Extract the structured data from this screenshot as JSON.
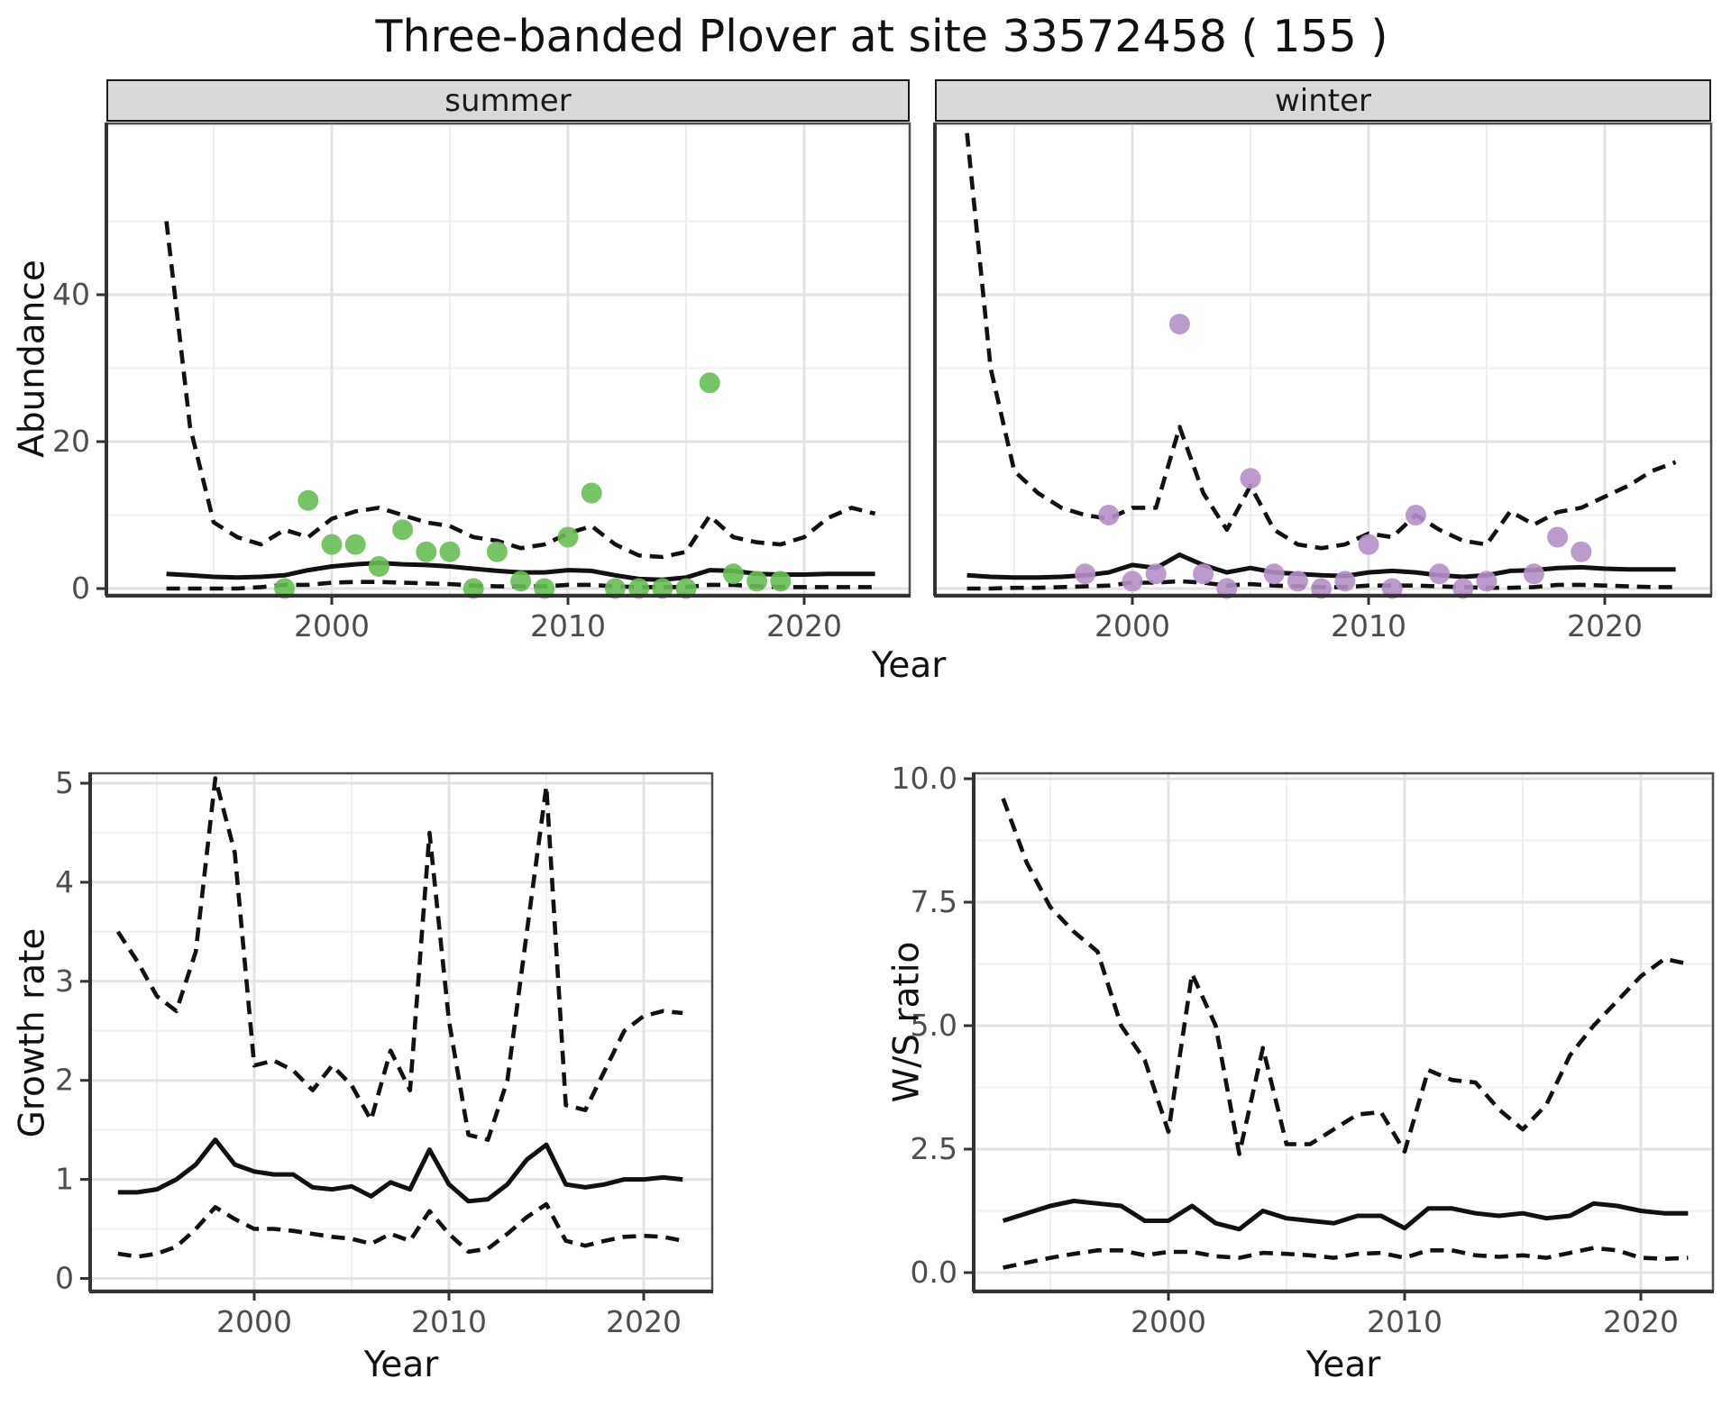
{
  "title": "Three-banded Plover at site 33572458 ( 155 )",
  "colors": {
    "summer_points": "#68BE57",
    "winter_points": "#B48FC6",
    "line": "#111111",
    "strip_bg": "#D9D9D9",
    "grid_major": "#E3E3E3",
    "grid_minor": "#F0F0F0",
    "tick_text": "#4D4D4D",
    "panel_border": "#4D4D4D"
  },
  "chart_data": [
    {
      "type": "scatter",
      "facet": "summer",
      "ylabel": "Abundance",
      "xlabel": "Year",
      "legend_position": "none",
      "grid": true,
      "xlim": [
        1991.5,
        2024.5
      ],
      "ylim": [
        -2.5,
        63
      ],
      "x_ticks": {
        "labels": [
          "2000",
          "2010",
          "2020"
        ],
        "values": [
          2000,
          2010,
          2020
        ]
      },
      "y_ticks": {
        "labels": [
          "0",
          "20",
          "40"
        ],
        "values": [
          0,
          20,
          40
        ]
      },
      "point_color": "#68BE57",
      "points": {
        "x": [
          1998,
          1999,
          2000,
          2001,
          2002,
          2003,
          2004,
          2005,
          2006,
          2007,
          2008,
          2009,
          2010,
          2011,
          2012,
          2013,
          2014,
          2015,
          2016,
          2017,
          2018,
          2019
        ],
        "y": [
          0,
          12,
          6,
          6,
          3,
          8,
          5,
          5,
          0,
          5,
          1,
          0,
          7,
          13,
          0,
          0,
          0,
          0,
          28,
          2,
          1,
          1
        ]
      },
      "series": [
        {
          "name": "median",
          "style": "solid",
          "x": [
            1993,
            1994,
            1995,
            1996,
            1997,
            1998,
            1999,
            2000,
            2001,
            2002,
            2003,
            2004,
            2005,
            2006,
            2007,
            2008,
            2009,
            2010,
            2011,
            2012,
            2013,
            2014,
            2015,
            2016,
            2017,
            2018,
            2019,
            2020,
            2021,
            2022,
            2023
          ],
          "y": [
            2.0,
            1.8,
            1.6,
            1.5,
            1.6,
            1.8,
            2.5,
            3.0,
            3.3,
            3.5,
            3.3,
            3.2,
            3.0,
            2.7,
            2.4,
            2.2,
            2.2,
            2.5,
            2.4,
            1.8,
            1.3,
            1.2,
            1.5,
            2.5,
            2.4,
            2.0,
            1.9,
            1.9,
            2.0,
            2.0,
            2.0
          ]
        },
        {
          "name": "upper_quantile",
          "style": "dashed",
          "x": [
            1993,
            1994,
            1995,
            1996,
            1997,
            1998,
            1999,
            2000,
            2001,
            2002,
            2003,
            2004,
            2005,
            2006,
            2007,
            2008,
            2009,
            2010,
            2011,
            2012,
            2013,
            2014,
            2015,
            2016,
            2017,
            2018,
            2019,
            2020,
            2021,
            2022,
            2023
          ],
          "y": [
            50,
            22,
            9,
            7,
            6,
            8,
            7,
            9.5,
            10.5,
            11,
            10,
            9,
            8.5,
            7,
            6.5,
            5.5,
            6,
            7.5,
            8.5,
            6,
            4.5,
            4.3,
            5,
            9.9,
            7,
            6.3,
            6,
            7,
            9.6,
            11,
            10.2
          ]
        },
        {
          "name": "lower_quantile",
          "style": "dashed",
          "x": [
            1993,
            1994,
            1995,
            1996,
            1997,
            1998,
            1999,
            2000,
            2001,
            2002,
            2003,
            2004,
            2005,
            2006,
            2007,
            2008,
            2009,
            2010,
            2011,
            2012,
            2013,
            2014,
            2015,
            2016,
            2017,
            2018,
            2019,
            2020,
            2021,
            2022,
            2023
          ],
          "y": [
            0,
            0,
            0,
            0,
            0.2,
            0.5,
            0.5,
            0.8,
            0.9,
            0.9,
            0.8,
            0.7,
            0.6,
            0.4,
            0.3,
            0.3,
            0.3,
            0.5,
            0.5,
            0.3,
            0.2,
            0.2,
            0.2,
            0.5,
            0.5,
            0.3,
            0.2,
            0.2,
            0.2,
            0.2,
            0.2
          ]
        }
      ]
    },
    {
      "type": "scatter",
      "facet": "winter",
      "ylabel": "Abundance",
      "xlabel": "Year",
      "legend_position": "none",
      "grid": true,
      "xlim": [
        1991.5,
        2024.5
      ],
      "ylim": [
        -2.5,
        63
      ],
      "x_ticks": {
        "labels": [
          "2000",
          "2010",
          "2020"
        ],
        "values": [
          2000,
          2010,
          2020
        ]
      },
      "y_ticks": {
        "labels": [
          "0",
          "20",
          "40"
        ],
        "values": [
          0,
          20,
          40
        ]
      },
      "point_color": "#B48FC6",
      "points": {
        "x": [
          1998,
          1999,
          2000,
          2001,
          2002,
          2003,
          2004,
          2005,
          2006,
          2007,
          2008,
          2009,
          2010,
          2011,
          2012,
          2013,
          2014,
          2015,
          2017,
          2018,
          2019
        ],
        "y": [
          2,
          10,
          1,
          2,
          36,
          2,
          0,
          15,
          2,
          1,
          0,
          1,
          6,
          0,
          10,
          2,
          0,
          1,
          2,
          7,
          5
        ]
      },
      "series": [
        {
          "name": "median",
          "style": "solid",
          "x": [
            1993,
            1994,
            1995,
            1996,
            1997,
            1998,
            1999,
            2000,
            2001,
            2002,
            2003,
            2004,
            2005,
            2006,
            2007,
            2008,
            2009,
            2010,
            2011,
            2012,
            2013,
            2014,
            2015,
            2016,
            2017,
            2018,
            2019,
            2020,
            2021,
            2022,
            2023
          ],
          "y": [
            1.8,
            1.6,
            1.5,
            1.5,
            1.6,
            1.8,
            2.2,
            3.2,
            2.8,
            4.6,
            3.2,
            2.2,
            2.8,
            2.2,
            2.0,
            1.8,
            1.7,
            2.2,
            2.4,
            2.2,
            1.8,
            1.6,
            1.8,
            2.4,
            2.5,
            2.8,
            2.9,
            2.7,
            2.6,
            2.6,
            2.6
          ]
        },
        {
          "name": "upper_quantile",
          "style": "dashed",
          "x": [
            1993,
            1994,
            1995,
            1996,
            1997,
            1998,
            1999,
            2000,
            2001,
            2002,
            2003,
            2004,
            2005,
            2006,
            2007,
            2008,
            2009,
            2010,
            2011,
            2012,
            2013,
            2014,
            2015,
            2016,
            2017,
            2018,
            2019,
            2020,
            2021,
            2022,
            2023
          ],
          "y": [
            62,
            30,
            16,
            13,
            11,
            10,
            9.5,
            11,
            11,
            22,
            13,
            8,
            14,
            8,
            6,
            5.5,
            6,
            7.5,
            7,
            10,
            8,
            6.5,
            6,
            10.5,
            8.7,
            10.4,
            11,
            12.5,
            14,
            16,
            17.2
          ]
        },
        {
          "name": "lower_quantile",
          "style": "dashed",
          "x": [
            1993,
            1994,
            1995,
            1996,
            1997,
            1998,
            1999,
            2000,
            2001,
            2002,
            2003,
            2004,
            2005,
            2006,
            2007,
            2008,
            2009,
            2010,
            2011,
            2012,
            2013,
            2014,
            2015,
            2016,
            2017,
            2018,
            2019,
            2020,
            2021,
            2022,
            2023
          ],
          "y": [
            0,
            0,
            0.1,
            0.1,
            0.2,
            0.3,
            0.4,
            0.8,
            0.8,
            1.0,
            0.8,
            0.4,
            0.6,
            0.4,
            0.3,
            0.2,
            0.2,
            0.4,
            0.4,
            0.4,
            0.3,
            0.2,
            0.1,
            0.1,
            0.2,
            0.5,
            0.5,
            0.4,
            0.3,
            0.2,
            0.2
          ]
        }
      ]
    },
    {
      "type": "line",
      "facet": "",
      "ylabel": "Growth rate",
      "xlabel": "Year",
      "legend_position": "none",
      "grid": true,
      "xlim": [
        1991.5,
        2023.5
      ],
      "ylim": [
        -0.15,
        5.25
      ],
      "x_ticks": {
        "labels": [
          "2000",
          "2010",
          "2020"
        ],
        "values": [
          2000,
          2010,
          2020
        ]
      },
      "y_ticks": {
        "labels": [
          "0",
          "1",
          "2",
          "3",
          "4",
          "5"
        ],
        "values": [
          0,
          1,
          2,
          3,
          4,
          5
        ]
      },
      "series": [
        {
          "name": "median",
          "style": "solid",
          "x": [
            1993,
            1994,
            1995,
            1996,
            1997,
            1998,
            1999,
            2000,
            2001,
            2002,
            2003,
            2004,
            2005,
            2006,
            2007,
            2008,
            2009,
            2010,
            2011,
            2012,
            2013,
            2014,
            2015,
            2016,
            2017,
            2018,
            2019,
            2020,
            2021,
            2022
          ],
          "y": [
            0.87,
            0.87,
            0.9,
            1.0,
            1.15,
            1.4,
            1.15,
            1.08,
            1.05,
            1.05,
            0.92,
            0.9,
            0.93,
            0.83,
            0.97,
            0.9,
            1.3,
            0.95,
            0.78,
            0.8,
            0.95,
            1.2,
            1.35,
            0.95,
            0.92,
            0.95,
            1.0,
            1.0,
            1.02,
            1.0
          ]
        },
        {
          "name": "upper_quantile",
          "style": "dashed",
          "x": [
            1993,
            1994,
            1995,
            1996,
            1997,
            1998,
            1999,
            2000,
            2001,
            2002,
            2003,
            2004,
            2005,
            2006,
            2007,
            2008,
            2009,
            2010,
            2011,
            2012,
            2013,
            2014,
            2015,
            2016,
            2017,
            2018,
            2019,
            2020,
            2021,
            2022
          ],
          "y": [
            3.5,
            3.2,
            2.85,
            2.7,
            3.3,
            5.05,
            4.3,
            2.15,
            2.2,
            2.1,
            1.9,
            2.15,
            1.95,
            1.6,
            2.3,
            1.9,
            4.5,
            2.6,
            1.45,
            1.4,
            2.0,
            3.5,
            4.97,
            1.75,
            1.7,
            2.1,
            2.5,
            2.65,
            2.7,
            2.68
          ]
        },
        {
          "name": "lower_quantile",
          "style": "dashed",
          "x": [
            1993,
            1994,
            1995,
            1996,
            1997,
            1998,
            1999,
            2000,
            2001,
            2002,
            2003,
            2004,
            2005,
            2006,
            2007,
            2008,
            2009,
            2010,
            2011,
            2012,
            2013,
            2014,
            2015,
            2016,
            2017,
            2018,
            2019,
            2020,
            2021,
            2022
          ],
          "y": [
            0.25,
            0.22,
            0.25,
            0.32,
            0.5,
            0.72,
            0.6,
            0.5,
            0.5,
            0.48,
            0.45,
            0.42,
            0.4,
            0.35,
            0.45,
            0.38,
            0.68,
            0.45,
            0.27,
            0.3,
            0.45,
            0.62,
            0.75,
            0.38,
            0.33,
            0.38,
            0.42,
            0.43,
            0.42,
            0.38
          ]
        }
      ]
    },
    {
      "type": "line",
      "facet": "",
      "ylabel": "W/S ratio",
      "xlabel": "Year",
      "legend_position": "none",
      "grid": true,
      "xlim": [
        1991.5,
        2023.5
      ],
      "ylim": [
        -0.35,
        10.1
      ],
      "x_ticks": {
        "labels": [
          "2000",
          "2010",
          "2020"
        ],
        "values": [
          2000,
          2010,
          2020
        ]
      },
      "y_ticks": {
        "labels": [
          "0.0",
          "2.5",
          "5.0",
          "7.5",
          "10.0"
        ],
        "values": [
          0,
          2.5,
          5,
          7.5,
          10
        ]
      },
      "series": [
        {
          "name": "median",
          "style": "solid",
          "x": [
            1993,
            1994,
            1995,
            1996,
            1997,
            1998,
            1999,
            2000,
            2001,
            2002,
            2003,
            2004,
            2005,
            2006,
            2007,
            2008,
            2009,
            2010,
            2011,
            2012,
            2013,
            2014,
            2015,
            2016,
            2017,
            2018,
            2019,
            2020,
            2021,
            2022
          ],
          "y": [
            1.05,
            1.2,
            1.35,
            1.45,
            1.4,
            1.35,
            1.05,
            1.05,
            1.35,
            1.0,
            0.88,
            1.25,
            1.1,
            1.05,
            1.0,
            1.15,
            1.15,
            0.9,
            1.3,
            1.3,
            1.2,
            1.15,
            1.2,
            1.1,
            1.15,
            1.4,
            1.35,
            1.25,
            1.2,
            1.2
          ]
        },
        {
          "name": "upper_quantile",
          "style": "dashed",
          "x": [
            1993,
            1994,
            1995,
            1996,
            1997,
            1998,
            1999,
            2000,
            2001,
            2002,
            2003,
            2004,
            2005,
            2006,
            2007,
            2008,
            2009,
            2010,
            2011,
            2012,
            2013,
            2014,
            2015,
            2016,
            2017,
            2018,
            2019,
            2020,
            2021,
            2022
          ],
          "y": [
            9.6,
            8.3,
            7.4,
            6.9,
            6.5,
            5.0,
            4.3,
            2.85,
            6.05,
            5.0,
            2.4,
            4.55,
            2.6,
            2.6,
            2.9,
            3.2,
            3.25,
            2.45,
            4.1,
            3.9,
            3.85,
            3.3,
            2.9,
            3.4,
            4.4,
            5.0,
            5.5,
            6.0,
            6.35,
            6.25
          ]
        },
        {
          "name": "lower_quantile",
          "style": "dashed",
          "x": [
            1993,
            1994,
            1995,
            1996,
            1997,
            1998,
            1999,
            2000,
            2001,
            2002,
            2003,
            2004,
            2005,
            2006,
            2007,
            2008,
            2009,
            2010,
            2011,
            2012,
            2013,
            2014,
            2015,
            2016,
            2017,
            2018,
            2019,
            2020,
            2021,
            2022
          ],
          "y": [
            0.1,
            0.2,
            0.3,
            0.38,
            0.45,
            0.45,
            0.35,
            0.42,
            0.42,
            0.33,
            0.3,
            0.4,
            0.38,
            0.35,
            0.3,
            0.38,
            0.4,
            0.3,
            0.45,
            0.45,
            0.35,
            0.32,
            0.35,
            0.3,
            0.4,
            0.5,
            0.45,
            0.3,
            0.28,
            0.3
          ]
        }
      ]
    }
  ]
}
